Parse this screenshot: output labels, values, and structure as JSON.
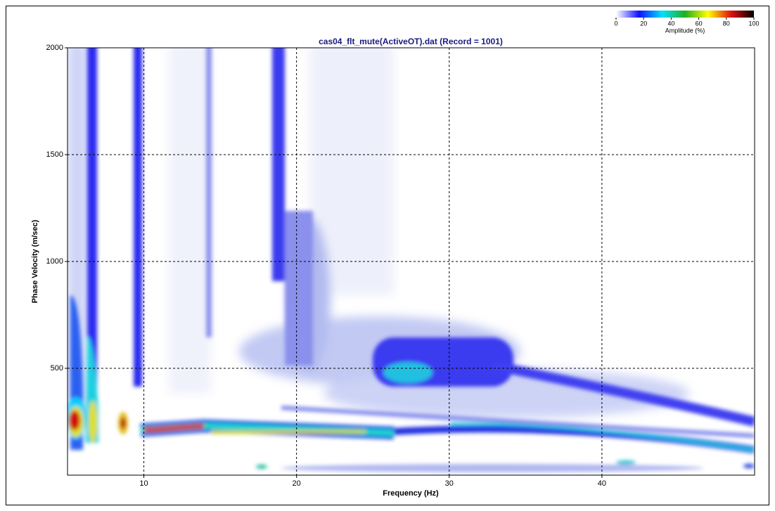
{
  "chart_data": {
    "type": "heatmap",
    "title": "cas04_flt_mute(ActiveOT).dat (Record = 1001)",
    "x_label": "Frequency (Hz)",
    "y_label": "Phase Velocity (m/sec)",
    "xlim": [
      5,
      50
    ],
    "xticks": [
      10,
      20,
      30,
      40
    ],
    "ylim": [
      0,
      2000
    ],
    "yticks": [
      500,
      1000,
      1500,
      2000
    ],
    "grid": true,
    "colorbar": {
      "label": "Amplitude (%)",
      "lim": [
        0,
        100
      ],
      "ticks": [
        0,
        20,
        40,
        60,
        80,
        100
      ],
      "colors": [
        "#ffffff",
        "#1010ff",
        "#00e0ff",
        "#20b020",
        "#ffff00",
        "#e01010",
        "#000000"
      ]
    }
  }
}
